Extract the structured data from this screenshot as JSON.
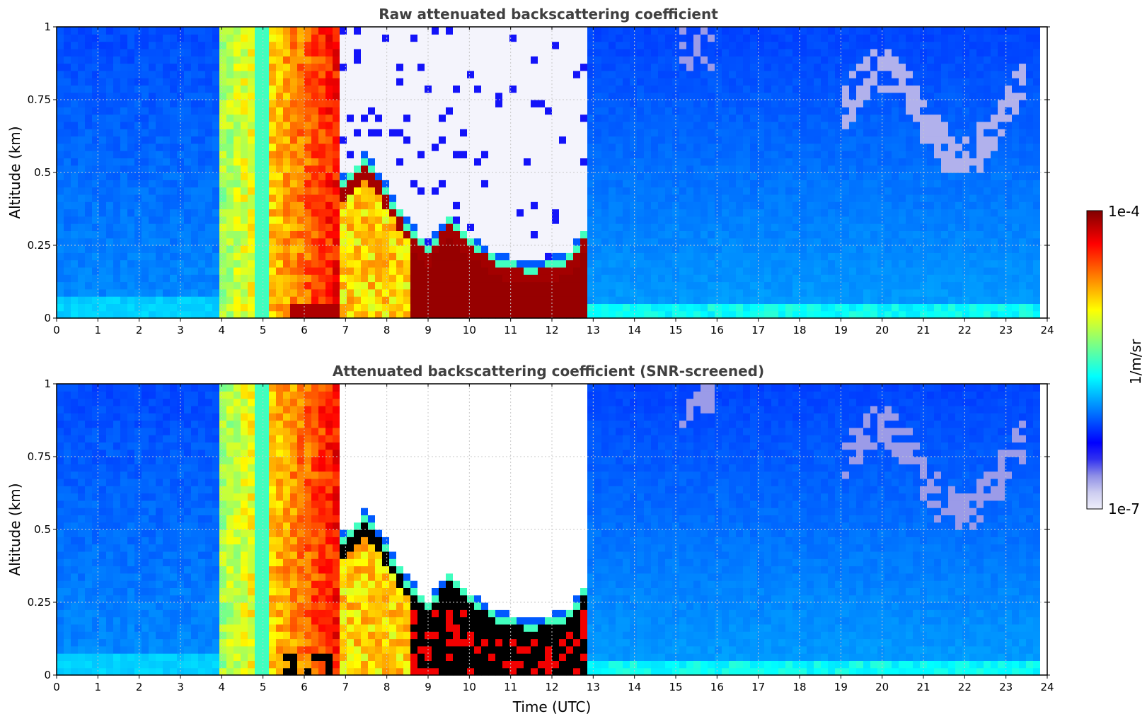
{
  "chart_data": [
    {
      "type": "heatmap",
      "title": "Raw attenuated backscattering coefficient",
      "xlabel": "",
      "ylabel": "Altitude (km)",
      "xlim": [
        0,
        24
      ],
      "ylim": [
        0,
        1
      ],
      "x_ticks": [
        "0",
        "1",
        "2",
        "3",
        "4",
        "5",
        "6",
        "7",
        "8",
        "9",
        "10",
        "11",
        "12",
        "13",
        "14",
        "15",
        "16",
        "17",
        "18",
        "19",
        "20",
        "21",
        "22",
        "23",
        "24"
      ],
      "y_ticks": [
        "0",
        "0.25",
        "0.5",
        "0.75",
        "1"
      ],
      "grid": true,
      "screened": false,
      "colormap": "jet (white-to-dark-red)",
      "features": {
        "high_backscatter_column_hours": [
          4.0,
          6.8
        ],
        "cloud_base_hours": [
          7.0,
          7.5,
          8.0,
          8.5,
          9.0,
          9.5,
          10.0,
          10.5,
          11.0,
          11.5,
          12.0,
          12.5,
          12.8
        ],
        "cloud_base_km": [
          0.45,
          0.53,
          0.42,
          0.3,
          0.22,
          0.32,
          0.25,
          0.2,
          0.17,
          0.16,
          0.17,
          0.2,
          0.28
        ],
        "data_end_hour": 23.75
      }
    },
    {
      "type": "heatmap",
      "title": "Attenuated backscattering coefficient (SNR-screened)",
      "xlabel": "Time (UTC)",
      "ylabel": "Altitude (km)",
      "xlim": [
        0,
        24
      ],
      "ylim": [
        0,
        1
      ],
      "x_ticks": [
        "0",
        "1",
        "2",
        "3",
        "4",
        "5",
        "6",
        "7",
        "8",
        "9",
        "10",
        "11",
        "12",
        "13",
        "14",
        "15",
        "16",
        "17",
        "18",
        "19",
        "20",
        "21",
        "22",
        "23",
        "24"
      ],
      "y_ticks": [
        "0",
        "0.25",
        "0.5",
        "0.75",
        "1"
      ],
      "grid": true,
      "screened": true,
      "colormap": "jet (white-to-dark-red), black above range",
      "features": {
        "high_backscatter_column_hours": [
          4.0,
          6.8
        ],
        "cloud_base_hours": [
          7.0,
          7.5,
          8.0,
          8.5,
          9.0,
          9.5,
          10.0,
          10.5,
          11.0,
          11.5,
          12.0,
          12.5,
          12.8
        ],
        "cloud_base_km": [
          0.45,
          0.53,
          0.42,
          0.3,
          0.22,
          0.32,
          0.25,
          0.2,
          0.17,
          0.16,
          0.17,
          0.2,
          0.28
        ],
        "data_end_hour": 23.75
      }
    }
  ],
  "colorbar": {
    "label": "1/m/sr",
    "max_label": "1e-4",
    "min_label": "1e-7",
    "colors": [
      "#eeeefa",
      "#ccccf0",
      "#8f8fe6",
      "#3030f0",
      "#0000ff",
      "#0040ff",
      "#0080ff",
      "#00c0ff",
      "#00ffff",
      "#40ffbf",
      "#80ff80",
      "#c0ff40",
      "#ffff00",
      "#ffc000",
      "#ff8000",
      "#ff4000",
      "#ff0000",
      "#c00000",
      "#800000"
    ]
  }
}
